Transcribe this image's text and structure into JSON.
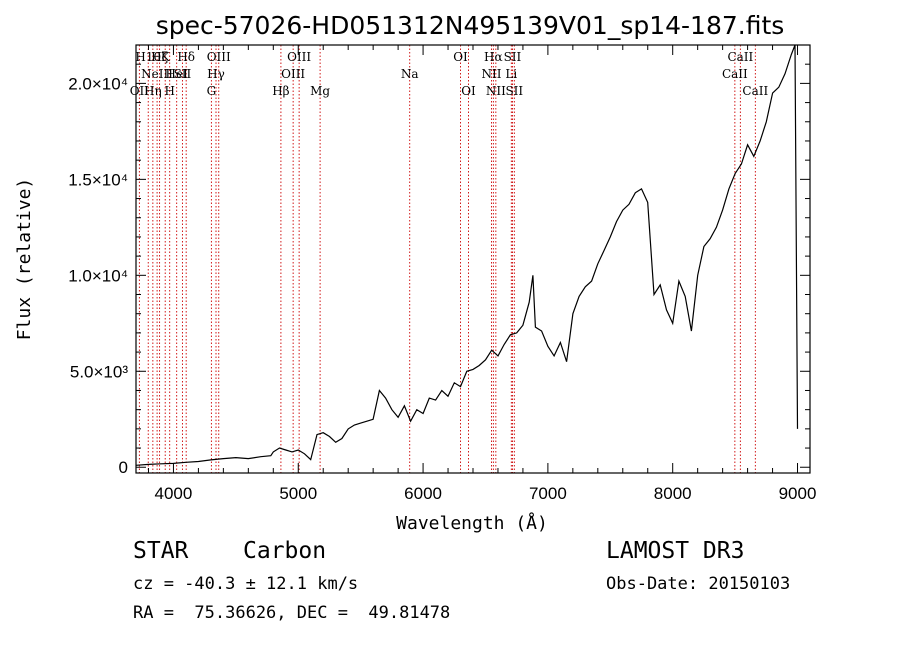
{
  "chart_data": {
    "type": "line",
    "title": "spec-57026-HD051312N495139V01_sp14-187.fits",
    "xlabel": "Wavelength (Å)",
    "ylabel": "Flux (relative)",
    "xlim": [
      3700,
      9100
    ],
    "ylim": [
      -300,
      22000
    ],
    "x_ticks": [
      {
        "value": 4000,
        "label": "4000"
      },
      {
        "value": 5000,
        "label": "5000"
      },
      {
        "value": 6000,
        "label": "6000"
      },
      {
        "value": 7000,
        "label": "7000"
      },
      {
        "value": 8000,
        "label": "8000"
      },
      {
        "value": 9000,
        "label": "9000"
      }
    ],
    "y_ticks": [
      {
        "value": 0,
        "label": "0"
      },
      {
        "value": 5000,
        "label": "5.0×10³"
      },
      {
        "value": 10000,
        "label": "1.0×10⁴"
      },
      {
        "value": 15000,
        "label": "1.5×10⁴"
      },
      {
        "value": 20000,
        "label": "2.0×10⁴"
      }
    ],
    "series": [
      {
        "name": "spectrum",
        "x": [
          3700,
          3800,
          3900,
          4000,
          4100,
          4200,
          4300,
          4400,
          4500,
          4600,
          4700,
          4780,
          4800,
          4850,
          4900,
          4950,
          5000,
          5050,
          5100,
          5150,
          5200,
          5250,
          5300,
          5350,
          5400,
          5450,
          5500,
          5550,
          5600,
          5650,
          5700,
          5750,
          5800,
          5850,
          5900,
          5950,
          6000,
          6050,
          6100,
          6150,
          6200,
          6250,
          6300,
          6350,
          6400,
          6450,
          6500,
          6550,
          6600,
          6650,
          6700,
          6750,
          6800,
          6850,
          6880,
          6900,
          6950,
          7000,
          7050,
          7100,
          7150,
          7200,
          7250,
          7300,
          7350,
          7400,
          7450,
          7500,
          7550,
          7600,
          7650,
          7700,
          7750,
          7800,
          7850,
          7900,
          7950,
          8000,
          8050,
          8100,
          8150,
          8200,
          8250,
          8300,
          8350,
          8400,
          8450,
          8500,
          8550,
          8600,
          8650,
          8700,
          8750,
          8800,
          8850,
          8900,
          8950,
          8980,
          9000
        ],
        "y": [
          100,
          150,
          180,
          200,
          260,
          300,
          380,
          450,
          500,
          450,
          550,
          600,
          800,
          1000,
          900,
          800,
          900,
          700,
          400,
          1700,
          1800,
          1600,
          1300,
          1500,
          2000,
          2200,
          2300,
          2400,
          2500,
          4000,
          3600,
          3000,
          2600,
          3200,
          2400,
          3000,
          2800,
          3600,
          3500,
          4000,
          3700,
          4400,
          4200,
          5000,
          5100,
          5300,
          5600,
          6100,
          5800,
          6400,
          6900,
          7000,
          7400,
          8600,
          10000,
          7300,
          7100,
          6300,
          5800,
          6500,
          5500,
          8000,
          8900,
          9400,
          9700,
          10600,
          11300,
          12000,
          12800,
          13400,
          13700,
          14300,
          14500,
          13800,
          9000,
          9500,
          8200,
          7500,
          9700,
          8900,
          7100,
          10000,
          11500,
          11900,
          12500,
          13400,
          14500,
          15300,
          15800,
          16800,
          16200,
          17000,
          18000,
          19500,
          19800,
          20500,
          21500,
          22000,
          2000
        ]
      }
    ],
    "spectral_lines": [
      {
        "wavelength": 3727,
        "label": "OII",
        "row": 3
      },
      {
        "wavelength": 3798,
        "label": "H10",
        "row": 1
      },
      {
        "wavelength": 3835,
        "label": "Hη",
        "row": 3
      },
      {
        "wavelength": 3869,
        "label": "NeIII",
        "row": 2
      },
      {
        "wavelength": 3889,
        "label": "Hζ",
        "row": 1
      },
      {
        "wavelength": 3934,
        "label": "K",
        "row": 1
      },
      {
        "wavelength": 3970,
        "label": "H",
        "row": 3
      },
      {
        "wavelength": 4026,
        "label": "HeI",
        "row": 2
      },
      {
        "wavelength": 4072,
        "label": "SII",
        "row": 2
      },
      {
        "wavelength": 4102,
        "label": "Hδ",
        "row": 1
      },
      {
        "wavelength": 4304,
        "label": "G",
        "row": 3
      },
      {
        "wavelength": 4341,
        "label": "Hγ",
        "row": 2
      },
      {
        "wavelength": 4363,
        "label": "OIII",
        "row": 1
      },
      {
        "wavelength": 4861,
        "label": "Hβ",
        "row": 3
      },
      {
        "wavelength": 4959,
        "label": "OIII",
        "row": 2
      },
      {
        "wavelength": 5007,
        "label": "OIII",
        "row": 1
      },
      {
        "wavelength": 5175,
        "label": "Mg",
        "row": 3
      },
      {
        "wavelength": 5893,
        "label": "Na",
        "row": 2
      },
      {
        "wavelength": 6300,
        "label": "OI",
        "row": 1
      },
      {
        "wavelength": 6364,
        "label": "OI",
        "row": 3
      },
      {
        "wavelength": 6548,
        "label": "NII",
        "row": 2
      },
      {
        "wavelength": 6563,
        "label": "Hα",
        "row": 1
      },
      {
        "wavelength": 6583,
        "label": "NII",
        "row": 3
      },
      {
        "wavelength": 6707,
        "label": "Li",
        "row": 2
      },
      {
        "wavelength": 6716,
        "label": "SII",
        "row": 1
      },
      {
        "wavelength": 6731,
        "label": "SII",
        "row": 3
      },
      {
        "wavelength": 8498,
        "label": "CaII",
        "row": 2
      },
      {
        "wavelength": 8542,
        "label": "CaII",
        "row": 1
      },
      {
        "wavelength": 8662,
        "label": "CaII",
        "row": 3
      }
    ],
    "grid": false
  },
  "info": {
    "class_label": "STAR",
    "subclass_label": "Carbon",
    "survey": "LAMOST DR3",
    "redshift": "cz = -40.3 ± 12.1 km/s",
    "obs_date": "Obs-Date: 20150103",
    "coords": "RA =  75.36626, DEC =  49.81478"
  },
  "colors": {
    "spectrum": "#000000",
    "line_marker": "#cc0000",
    "axis": "#000000"
  }
}
